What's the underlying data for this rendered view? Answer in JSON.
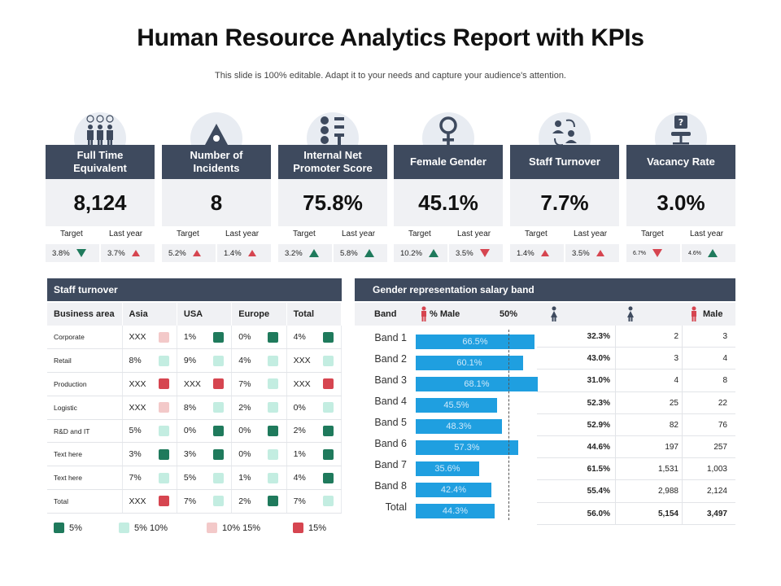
{
  "header": {
    "title": "Human Resource Analytics Report with KPIs",
    "subtitle": "This slide is 100% editable. Adapt it to your needs and capture your audience's attention."
  },
  "kpis": [
    {
      "icon": "people-group-icon",
      "title": "Full Time Equivalent",
      "value": "8,124",
      "target_label": "Target",
      "lastyear_label": "Last year",
      "target": "3.8%",
      "target_trend": "down-green",
      "lastyear": "3.7%",
      "lastyear_trend": "up-red"
    },
    {
      "icon": "warning-triangle-icon",
      "title": "Number of Incidents",
      "value": "8",
      "target_label": "Target",
      "lastyear_label": "Last year",
      "target": "5.2%",
      "target_trend": "up-red",
      "lastyear": "1.4%",
      "lastyear_trend": "up-red"
    },
    {
      "icon": "smiley-faces-icon",
      "title": "Internal Net Promoter Score",
      "value": "75.8%",
      "target_label": "Target",
      "lastyear_label": "Last year",
      "target": "3.2%",
      "target_trend": "up-green",
      "lastyear": "5.8%",
      "lastyear_trend": "up-green"
    },
    {
      "icon": "female-symbol-icon",
      "title": "Female Gender",
      "value": "45.1%",
      "target_label": "Target",
      "lastyear_label": "Last year",
      "target": "10.2%",
      "target_trend": "up-green",
      "lastyear": "3.5%",
      "lastyear_trend": "down-red"
    },
    {
      "icon": "staff-turnover-icon",
      "title": "Staff Turnover",
      "value": "7.7%",
      "target_label": "Target",
      "lastyear_label": "Last year",
      "target": "1.4%",
      "target_trend": "up-red",
      "lastyear": "3.5%",
      "lastyear_trend": "up-red"
    },
    {
      "icon": "vacant-chair-icon",
      "title": "Vacancy Rate",
      "value": "3.0%",
      "target_label": "Target",
      "lastyear_label": "Last year",
      "target": "6.7%",
      "target_trend": "down-red",
      "lastyear": "4.6%",
      "lastyear_trend": "up-green"
    }
  ],
  "staff_turnover": {
    "title": "Staff turnover",
    "columns": [
      "Business area",
      "Asia",
      "USA",
      "Europe",
      "Total"
    ],
    "rows": [
      {
        "area": "Corporate",
        "cells": [
          [
            "XXX",
            "light-red"
          ],
          [
            "1%",
            "green"
          ],
          [
            "0%",
            "green"
          ],
          [
            "4%",
            "green"
          ]
        ]
      },
      {
        "area": "Retail",
        "cells": [
          [
            "8%",
            "mint"
          ],
          [
            "9%",
            "mint"
          ],
          [
            "4%",
            "mint"
          ],
          [
            "XXX",
            "mint"
          ]
        ]
      },
      {
        "area": "Production",
        "cells": [
          [
            "XXX",
            "red"
          ],
          [
            "XXX",
            "red"
          ],
          [
            "7%",
            "mint"
          ],
          [
            "XXX",
            "red"
          ]
        ]
      },
      {
        "area": "Logistic",
        "cells": [
          [
            "XXX",
            "light-red"
          ],
          [
            "8%",
            "mint"
          ],
          [
            "2%",
            "mint"
          ],
          [
            "0%",
            "mint"
          ]
        ]
      },
      {
        "area": "R&D and IT",
        "cells": [
          [
            "5%",
            "mint"
          ],
          [
            "0%",
            "green"
          ],
          [
            "0%",
            "green"
          ],
          [
            "2%",
            "green"
          ]
        ]
      },
      {
        "area": "Text here",
        "cells": [
          [
            "3%",
            "green"
          ],
          [
            "3%",
            "green"
          ],
          [
            "0%",
            "mint"
          ],
          [
            "1%",
            "green"
          ]
        ]
      },
      {
        "area": "Text here",
        "cells": [
          [
            "7%",
            "mint"
          ],
          [
            "5%",
            "mint"
          ],
          [
            "1%",
            "mint"
          ],
          [
            "4%",
            "green"
          ]
        ]
      },
      {
        "area": "Total",
        "cells": [
          [
            "XXX",
            "red"
          ],
          [
            "7%",
            "mint"
          ],
          [
            "2%",
            "green"
          ],
          [
            "7%",
            "mint"
          ]
        ]
      }
    ],
    "legend": [
      {
        "label": "5%",
        "color": "green"
      },
      {
        "label": "5% 10%",
        "color": "mint"
      },
      {
        "label": "10% 15%",
        "color": "light-red"
      },
      {
        "label": "15%",
        "color": "red"
      }
    ],
    "colors": {
      "green": "#1f7a5c",
      "mint": "#c3ede1",
      "light-red": "#f3c9c9",
      "red": "#d64550"
    }
  },
  "gender": {
    "title": "Gender representation salary band",
    "sub_band": "Band",
    "sub_male": "% Male",
    "sub_50": "50%",
    "sub_male2": "Male",
    "bands": [
      {
        "label": "Band 1",
        "bar": "66.5%",
        "value": 66.5,
        "pct": "32.3%",
        "a": "2",
        "b": "3"
      },
      {
        "label": "Band 2",
        "bar": "60.1%",
        "value": 60.1,
        "pct": "43.0%",
        "a": "3",
        "b": "4"
      },
      {
        "label": "Band 3",
        "bar": "68.1%",
        "value": 68.1,
        "pct": "31.0%",
        "a": "4",
        "b": "8"
      },
      {
        "label": "Band 4",
        "bar": "45.5%",
        "value": 45.5,
        "pct": "52.3%",
        "a": "25",
        "b": "22"
      },
      {
        "label": "Band 5",
        "bar": "48.3%",
        "value": 48.3,
        "pct": "52.9%",
        "a": "82",
        "b": "76"
      },
      {
        "label": "Band 6",
        "bar": "57.3%",
        "value": 57.3,
        "pct": "44.6%",
        "a": "197",
        "b": "257"
      },
      {
        "label": "Band 7",
        "bar": "35.6%",
        "value": 35.6,
        "pct": "61.5%",
        "a": "1,531",
        "b": "1,003"
      },
      {
        "label": "Band 8",
        "bar": "42.4%",
        "value": 42.4,
        "pct": "55.4%",
        "a": "2,988",
        "b": "2,124"
      },
      {
        "label": "Total",
        "bar": "44.3%",
        "value": 44.3,
        "pct": "56.0%",
        "a": "5,154",
        "b": "3,497"
      }
    ]
  }
}
